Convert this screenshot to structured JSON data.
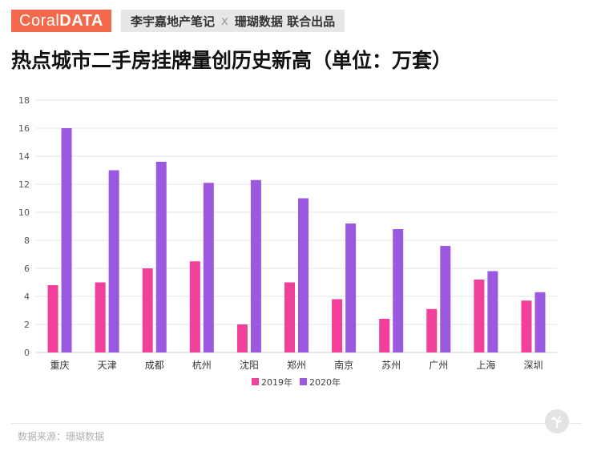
{
  "header": {
    "brand_part1": "Coral",
    "brand_part2": "DATA",
    "coop_left": "李宇嘉地产笔记",
    "coop_sep": "x",
    "coop_right": "珊瑚数据 联合出品"
  },
  "colors": {
    "series_2019": "#f0409a",
    "series_2020": "#9b59e0",
    "brand": "#f26a4b"
  },
  "footer": {
    "source": "数据来源：珊瑚数据"
  },
  "logo_icon": "coral-logo-icon",
  "chart_data": {
    "type": "bar",
    "title": "热点城市二手房挂牌量创历史新高（单位：万套）",
    "categories": [
      "重庆",
      "天津",
      "成都",
      "杭州",
      "沈阳",
      "郑州",
      "南京",
      "苏州",
      "广州",
      "上海",
      "深圳"
    ],
    "series": [
      {
        "name": "2019年",
        "values": [
          4.8,
          5.0,
          6.0,
          6.5,
          2.0,
          5.0,
          3.8,
          2.4,
          3.1,
          5.2,
          3.7
        ]
      },
      {
        "name": "2020年",
        "values": [
          16.0,
          13.0,
          13.6,
          12.1,
          12.3,
          11.0,
          9.2,
          8.8,
          7.6,
          5.8,
          4.3
        ]
      }
    ],
    "ylim": [
      0,
      18
    ],
    "yticks": [
      0,
      2,
      4,
      6,
      8,
      10,
      12,
      14,
      16,
      18
    ],
    "grid": true,
    "legend": "bottom"
  }
}
